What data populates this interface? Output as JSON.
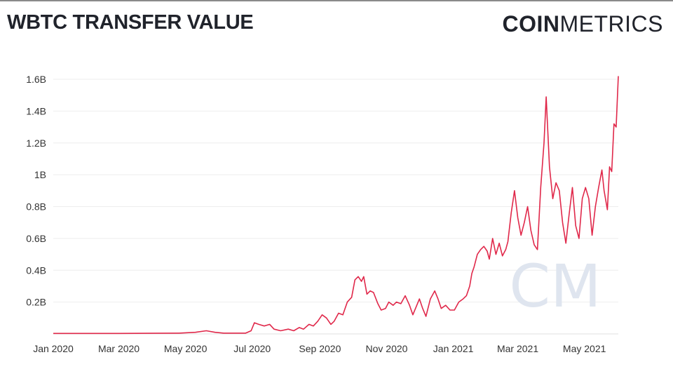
{
  "header": {
    "title": "WBTC TRANSFER VALUE",
    "logo_bold": "COIN",
    "logo_light": "METRICS"
  },
  "watermark": "CM",
  "colors": {
    "line": "#e0284a",
    "grid": "#eeeeee",
    "watermark": "#dfe5ef"
  },
  "chart_data": {
    "type": "line",
    "title": "WBTC TRANSFER VALUE",
    "xlabel": "",
    "ylabel": "",
    "x_range": [
      "2020-01-01",
      "2021-06-01"
    ],
    "ylim": [
      0,
      1.6
    ],
    "y_unit": "B",
    "grid": true,
    "y_ticks": [
      {
        "value": 0.2,
        "label": "0.2B"
      },
      {
        "value": 0.4,
        "label": "0.4B"
      },
      {
        "value": 0.6,
        "label": "0.6B"
      },
      {
        "value": 0.8,
        "label": "0.8B"
      },
      {
        "value": 1.0,
        "label": "1B"
      },
      {
        "value": 1.2,
        "label": "1.2B"
      },
      {
        "value": 1.4,
        "label": "1.4B"
      },
      {
        "value": 1.6,
        "label": "1.6B"
      }
    ],
    "x_ticks": [
      {
        "date": "2020-01-01",
        "label": "Jan 2020"
      },
      {
        "date": "2020-03-01",
        "label": "Mar 2020"
      },
      {
        "date": "2020-05-01",
        "label": "May 2020"
      },
      {
        "date": "2020-07-01",
        "label": "Jul 2020"
      },
      {
        "date": "2020-09-01",
        "label": "Sep 2020"
      },
      {
        "date": "2020-11-01",
        "label": "Nov 2020"
      },
      {
        "date": "2021-01-01",
        "label": "Jan 2021"
      },
      {
        "date": "2021-03-01",
        "label": "Mar 2021"
      },
      {
        "date": "2021-05-01",
        "label": "May 2021"
      }
    ],
    "series": [
      {
        "points": [
          [
            "2020-01-01",
            0.003
          ],
          [
            "2020-02-01",
            0.003
          ],
          [
            "2020-03-01",
            0.003
          ],
          [
            "2020-04-01",
            0.004
          ],
          [
            "2020-04-25",
            0.005
          ],
          [
            "2020-05-10",
            0.01
          ],
          [
            "2020-05-20",
            0.02
          ],
          [
            "2020-05-28",
            0.01
          ],
          [
            "2020-06-05",
            0.005
          ],
          [
            "2020-06-25",
            0.005
          ],
          [
            "2020-06-30",
            0.02
          ],
          [
            "2020-07-03",
            0.07
          ],
          [
            "2020-07-07",
            0.06
          ],
          [
            "2020-07-12",
            0.05
          ],
          [
            "2020-07-17",
            0.06
          ],
          [
            "2020-07-21",
            0.03
          ],
          [
            "2020-07-27",
            0.02
          ],
          [
            "2020-08-03",
            0.03
          ],
          [
            "2020-08-08",
            0.02
          ],
          [
            "2020-08-13",
            0.04
          ],
          [
            "2020-08-17",
            0.03
          ],
          [
            "2020-08-22",
            0.06
          ],
          [
            "2020-08-26",
            0.05
          ],
          [
            "2020-08-30",
            0.08
          ],
          [
            "2020-09-03",
            0.12
          ],
          [
            "2020-09-07",
            0.1
          ],
          [
            "2020-09-11",
            0.06
          ],
          [
            "2020-09-14",
            0.08
          ],
          [
            "2020-09-18",
            0.13
          ],
          [
            "2020-09-22",
            0.12
          ],
          [
            "2020-09-26",
            0.2
          ],
          [
            "2020-09-30",
            0.23
          ],
          [
            "2020-10-03",
            0.34
          ],
          [
            "2020-10-06",
            0.36
          ],
          [
            "2020-10-09",
            0.33
          ],
          [
            "2020-10-11",
            0.36
          ],
          [
            "2020-10-14",
            0.25
          ],
          [
            "2020-10-17",
            0.27
          ],
          [
            "2020-10-20",
            0.26
          ],
          [
            "2020-10-24",
            0.19
          ],
          [
            "2020-10-27",
            0.15
          ],
          [
            "2020-10-31",
            0.16
          ],
          [
            "2020-11-03",
            0.2
          ],
          [
            "2020-11-07",
            0.18
          ],
          [
            "2020-11-10",
            0.2
          ],
          [
            "2020-11-14",
            0.19
          ],
          [
            "2020-11-18",
            0.24
          ],
          [
            "2020-11-22",
            0.18
          ],
          [
            "2020-11-25",
            0.12
          ],
          [
            "2020-11-28",
            0.17
          ],
          [
            "2020-12-01",
            0.22
          ],
          [
            "2020-12-04",
            0.16
          ],
          [
            "2020-12-07",
            0.11
          ],
          [
            "2020-12-11",
            0.22
          ],
          [
            "2020-12-15",
            0.27
          ],
          [
            "2020-12-18",
            0.22
          ],
          [
            "2020-12-21",
            0.16
          ],
          [
            "2020-12-25",
            0.18
          ],
          [
            "2020-12-29",
            0.15
          ],
          [
            "2021-01-02",
            0.15
          ],
          [
            "2021-01-06",
            0.2
          ],
          [
            "2021-01-10",
            0.22
          ],
          [
            "2021-01-13",
            0.24
          ],
          [
            "2021-01-16",
            0.3
          ],
          [
            "2021-01-18",
            0.38
          ],
          [
            "2021-01-20",
            0.42
          ],
          [
            "2021-01-23",
            0.5
          ],
          [
            "2021-01-26",
            0.53
          ],
          [
            "2021-01-29",
            0.55
          ],
          [
            "2021-02-01",
            0.52
          ],
          [
            "2021-02-03",
            0.47
          ],
          [
            "2021-02-06",
            0.6
          ],
          [
            "2021-02-09",
            0.5
          ],
          [
            "2021-02-12",
            0.57
          ],
          [
            "2021-02-15",
            0.49
          ],
          [
            "2021-02-18",
            0.53
          ],
          [
            "2021-02-20",
            0.58
          ],
          [
            "2021-02-23",
            0.76
          ],
          [
            "2021-02-26",
            0.9
          ],
          [
            "2021-03-01",
            0.73
          ],
          [
            "2021-03-04",
            0.62
          ],
          [
            "2021-03-07",
            0.7
          ],
          [
            "2021-03-10",
            0.8
          ],
          [
            "2021-03-13",
            0.65
          ],
          [
            "2021-03-16",
            0.56
          ],
          [
            "2021-03-19",
            0.53
          ],
          [
            "2021-03-22",
            0.92
          ],
          [
            "2021-03-25",
            1.2
          ],
          [
            "2021-03-27",
            1.49
          ],
          [
            "2021-03-30",
            1.05
          ],
          [
            "2021-04-02",
            0.85
          ],
          [
            "2021-04-05",
            0.95
          ],
          [
            "2021-04-08",
            0.9
          ],
          [
            "2021-04-11",
            0.7
          ],
          [
            "2021-04-14",
            0.57
          ],
          [
            "2021-04-17",
            0.75
          ],
          [
            "2021-04-20",
            0.92
          ],
          [
            "2021-04-23",
            0.68
          ],
          [
            "2021-04-26",
            0.6
          ],
          [
            "2021-04-29",
            0.85
          ],
          [
            "2021-05-02",
            0.92
          ],
          [
            "2021-05-05",
            0.85
          ],
          [
            "2021-05-08",
            0.62
          ],
          [
            "2021-05-11",
            0.8
          ],
          [
            "2021-05-14",
            0.92
          ],
          [
            "2021-05-17",
            1.03
          ],
          [
            "2021-05-19",
            0.9
          ],
          [
            "2021-05-22",
            0.78
          ],
          [
            "2021-05-24",
            1.05
          ],
          [
            "2021-05-26",
            1.02
          ],
          [
            "2021-05-28",
            1.32
          ],
          [
            "2021-05-30",
            1.3
          ],
          [
            "2021-06-01",
            1.62
          ]
        ]
      }
    ]
  }
}
